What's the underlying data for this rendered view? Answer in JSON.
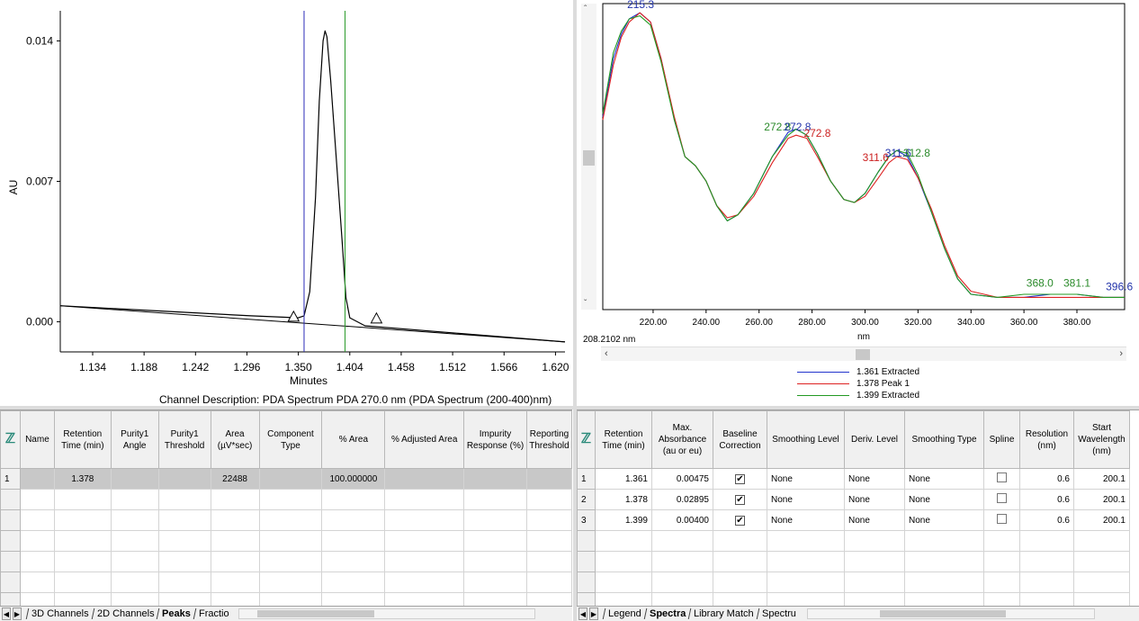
{
  "chromatogram": {
    "ylabel": "AU",
    "xlabel": "Minutes",
    "yticks": [
      "0.014",
      "0.007",
      "0.000"
    ],
    "xticks": [
      "1.134",
      "1.188",
      "1.242",
      "1.296",
      "1.350",
      "1.404",
      "1.458",
      "1.512",
      "1.566",
      "1.620"
    ],
    "channel_description": "Channel Description: PDA Spectrum PDA 270.0 nm (PDA Spectrum (200-400)nm)",
    "colors": {
      "trace": "#000000",
      "marker_start": "#2b2bb8",
      "marker_end": "#2a9a2a"
    }
  },
  "spectrum": {
    "xlabel": "nm",
    "cursor_readout": "208.2102 nm",
    "xticks": [
      "220.00",
      "240.00",
      "260.00",
      "280.00",
      "300.00",
      "320.00",
      "340.00",
      "360.00",
      "380.00"
    ],
    "annotations": [
      {
        "text": "215.3",
        "color": "#2233aa"
      },
      {
        "text": "272.8",
        "color": "#2a8a2a"
      },
      {
        "text": "272.8",
        "color": "#2233aa"
      },
      {
        "text": "272.8",
        "color": "#cc2222"
      },
      {
        "text": "311.6",
        "color": "#cc2222"
      },
      {
        "text": "311.6",
        "color": "#2233aa"
      },
      {
        "text": "312.8",
        "color": "#2a8a2a"
      },
      {
        "text": "368.0",
        "color": "#2a8a2a"
      },
      {
        "text": "381.1",
        "color": "#2a8a2a"
      },
      {
        "text": "396.6",
        "color": "#2233aa"
      }
    ],
    "legend": [
      {
        "label": "1.361 Extracted",
        "color": "#2233cc"
      },
      {
        "label": "1.378 Peak 1",
        "color": "#dd2222"
      },
      {
        "label": "1.399 Extracted",
        "color": "#229922"
      }
    ]
  },
  "chart_data": [
    {
      "type": "line",
      "title": "",
      "xlabel": "Minutes",
      "ylabel": "AU",
      "xlim": [
        1.1,
        1.63
      ],
      "ylim": [
        -0.0015,
        0.0155
      ],
      "series": [
        {
          "x": [
            1.1,
            1.3,
            1.35,
            1.356,
            1.362,
            1.368,
            1.372,
            1.376,
            1.378,
            1.38,
            1.384,
            1.39,
            1.396,
            1.4,
            1.404,
            1.42,
            1.63
          ],
          "y": [
            0.0008,
            0.0003,
            0.0002,
            0.0003,
            0.0015,
            0.0062,
            0.011,
            0.014,
            0.0145,
            0.0142,
            0.012,
            0.008,
            0.004,
            0.0012,
            0.0002,
            -0.0002,
            -0.001
          ]
        }
      ],
      "markers": [
        1.356,
        1.399
      ],
      "grid": false
    },
    {
      "type": "line",
      "title": "",
      "xlabel": "nm",
      "xlim": [
        201,
        398
      ],
      "ylim": [
        0,
        1
      ],
      "series": [
        {
          "name": "1.361 Extracted",
          "x": [
            201,
            205,
            208,
            211,
            215,
            219,
            223,
            228,
            232,
            236,
            240,
            244,
            248,
            252,
            258,
            265,
            271,
            274,
            278,
            282,
            287,
            292,
            296,
            300,
            305,
            309,
            312,
            316,
            320,
            325,
            330,
            335,
            340,
            350,
            360,
            370,
            380,
            390,
            398
          ],
          "y": [
            0.63,
            0.82,
            0.9,
            0.95,
            0.97,
            0.94,
            0.82,
            0.62,
            0.5,
            0.47,
            0.42,
            0.34,
            0.29,
            0.31,
            0.38,
            0.5,
            0.58,
            0.59,
            0.57,
            0.51,
            0.42,
            0.36,
            0.35,
            0.38,
            0.45,
            0.5,
            0.52,
            0.5,
            0.43,
            0.32,
            0.2,
            0.1,
            0.05,
            0.04,
            0.04,
            0.05,
            0.05,
            0.04,
            0.04
          ]
        },
        {
          "name": "1.378 Peak 1",
          "x": [
            201,
            205,
            208,
            211,
            215,
            219,
            223,
            228,
            232,
            236,
            240,
            244,
            248,
            252,
            258,
            265,
            271,
            274,
            278,
            282,
            287,
            292,
            296,
            300,
            305,
            309,
            312,
            316,
            320,
            325,
            330,
            335,
            340,
            350,
            360,
            370,
            380,
            390,
            398
          ],
          "y": [
            0.62,
            0.8,
            0.89,
            0.94,
            0.97,
            0.94,
            0.82,
            0.63,
            0.5,
            0.47,
            0.42,
            0.34,
            0.3,
            0.31,
            0.37,
            0.48,
            0.56,
            0.57,
            0.56,
            0.5,
            0.42,
            0.36,
            0.35,
            0.37,
            0.43,
            0.48,
            0.5,
            0.49,
            0.43,
            0.33,
            0.21,
            0.11,
            0.06,
            0.04,
            0.04,
            0.04,
            0.04,
            0.04,
            0.04
          ]
        },
        {
          "name": "1.399 Extracted",
          "x": [
            201,
            205,
            208,
            211,
            215,
            219,
            223,
            228,
            232,
            236,
            240,
            244,
            248,
            252,
            258,
            265,
            271,
            274,
            278,
            282,
            287,
            292,
            296,
            300,
            305,
            309,
            312,
            316,
            320,
            325,
            330,
            335,
            340,
            350,
            360,
            370,
            380,
            390,
            398
          ],
          "y": [
            0.64,
            0.84,
            0.91,
            0.95,
            0.96,
            0.93,
            0.81,
            0.62,
            0.5,
            0.47,
            0.42,
            0.34,
            0.29,
            0.31,
            0.38,
            0.5,
            0.57,
            0.59,
            0.57,
            0.51,
            0.42,
            0.36,
            0.35,
            0.38,
            0.45,
            0.5,
            0.52,
            0.51,
            0.44,
            0.32,
            0.2,
            0.1,
            0.05,
            0.04,
            0.05,
            0.05,
            0.05,
            0.04,
            0.04
          ]
        }
      ],
      "grid": false
    }
  ],
  "peaks_table": {
    "headers": [
      "Name",
      "Retention Time (min)",
      "Purity1 Angle",
      "Purity1 Threshold",
      "Area (µV*sec)",
      "Component Type",
      "% Area",
      "% Adjusted Area",
      "Impurity Response (%)",
      "Reporting Threshold"
    ],
    "rows": [
      {
        "num": "1",
        "name": "",
        "rt": "1.378",
        "angle": "",
        "threshold": "",
        "area": "22488",
        "type": "",
        "pct_area": "100.000000",
        "adj_area": "",
        "impurity": "",
        "reporting": ""
      }
    ],
    "tabs": [
      "3D Channels",
      "2D Channels",
      "Peaks",
      "Fractio"
    ]
  },
  "spectra_table": {
    "headers": [
      "Retention Time (min)",
      "Max. Absorbance (au or eu)",
      "Baseline Correction",
      "Smoothing Level",
      "Deriv. Level",
      "Smoothing Type",
      "Spline",
      "Resolution (nm)",
      "Start Wavelength (nm)"
    ],
    "rows": [
      {
        "num": "1",
        "rt": "1.361",
        "abs": "0.00475",
        "baseline": true,
        "smooth_level": "None",
        "deriv": "None",
        "smooth_type": "None",
        "spline": false,
        "res": "0.6",
        "start": "200.1"
      },
      {
        "num": "2",
        "rt": "1.378",
        "abs": "0.02895",
        "baseline": true,
        "smooth_level": "None",
        "deriv": "None",
        "smooth_type": "None",
        "spline": false,
        "res": "0.6",
        "start": "200.1"
      },
      {
        "num": "3",
        "rt": "1.399",
        "abs": "0.00400",
        "baseline": true,
        "smooth_level": "None",
        "deriv": "None",
        "smooth_type": "None",
        "spline": false,
        "res": "0.6",
        "start": "200.1"
      }
    ],
    "tabs": [
      "Legend",
      "Spectra",
      "Library Match",
      "Spectru"
    ]
  }
}
